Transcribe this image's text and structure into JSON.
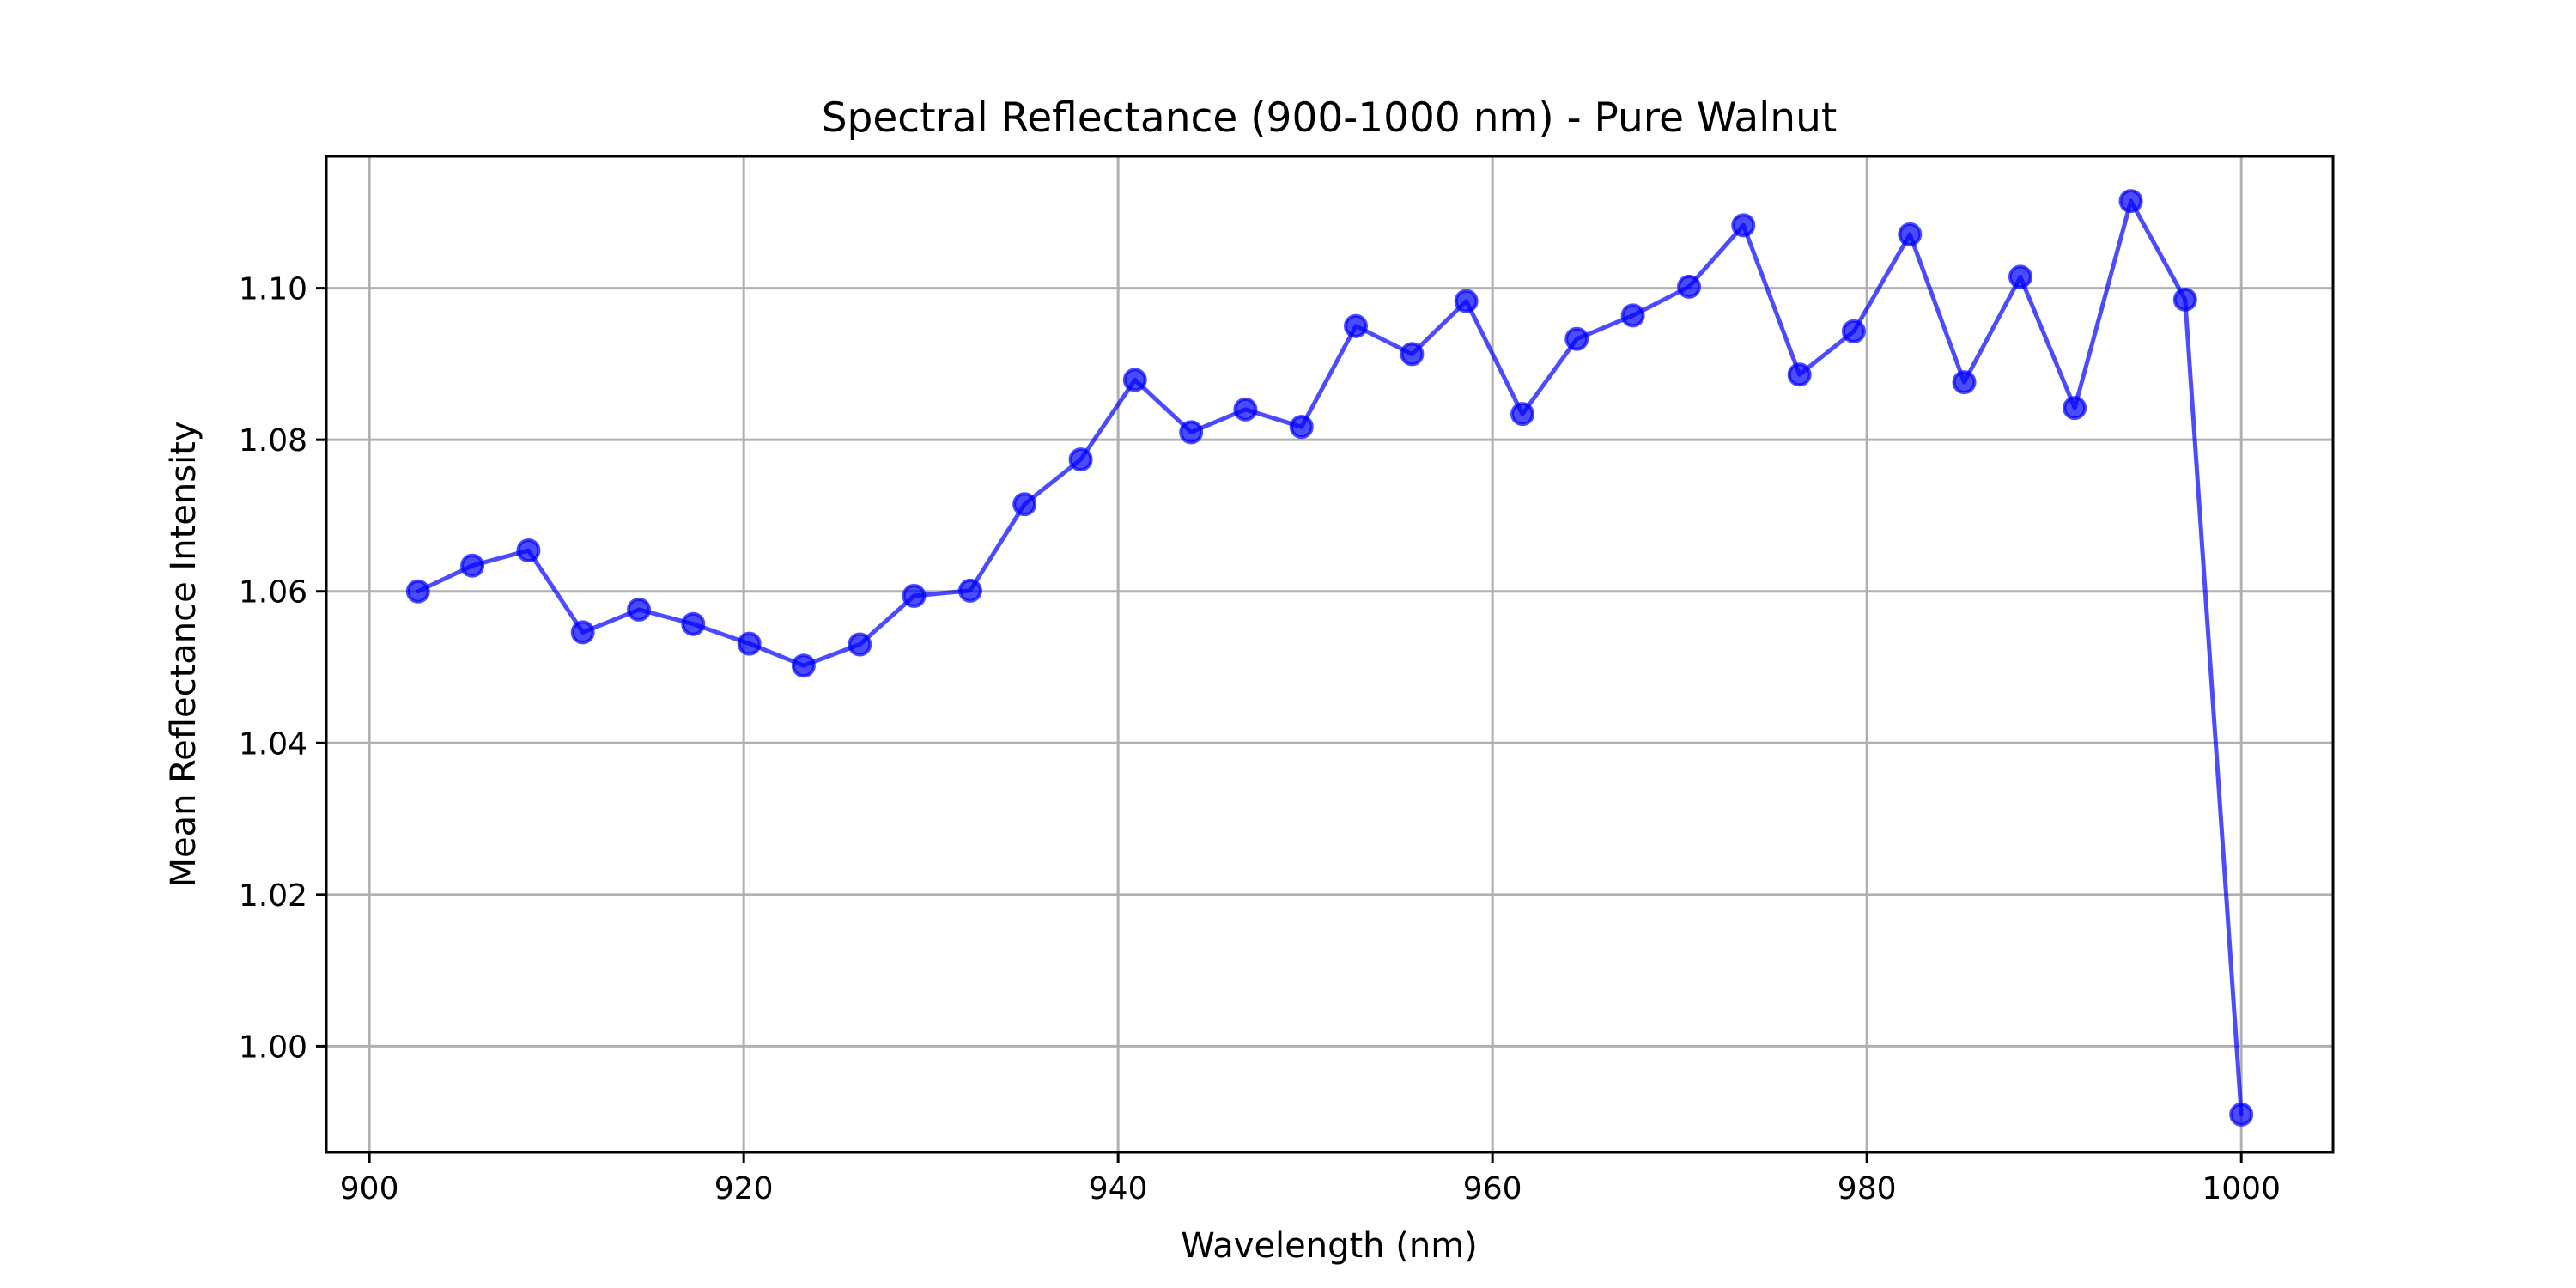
{
  "chart_data": {
    "type": "line",
    "title": "Spectral Reflectance (900-1000 nm) - Pure Walnut",
    "xlabel": "Wavelength (nm)",
    "ylabel": "Mean Reflectance Intensity",
    "xlim": [
      897.7,
      1004.9
    ],
    "ylim": [
      0.986,
      1.1174
    ],
    "xticks": [
      900,
      920,
      940,
      960,
      980,
      1000
    ],
    "xtick_labels": [
      "900",
      "920",
      "940",
      "960",
      "980",
      "1000"
    ],
    "yticks": [
      1.0,
      1.02,
      1.04,
      1.06,
      1.08,
      1.1
    ],
    "ytick_labels": [
      "1.00",
      "1.02",
      "1.04",
      "1.06",
      "1.08",
      "1.10"
    ],
    "grid": true,
    "legend": "none",
    "color": "#0000ff",
    "series": [
      {
        "marker": "circle",
        "x": [
          902.6,
          905.5,
          908.5,
          911.4,
          914.4,
          917.3,
          920.3,
          923.2,
          926.2,
          929.1,
          932.1,
          935.0,
          938.0,
          940.9,
          943.9,
          946.8,
          949.8,
          952.7,
          955.7,
          958.6,
          961.6,
          964.5,
          967.5,
          970.5,
          973.4,
          976.4,
          979.3,
          982.3,
          985.2,
          988.2,
          991.1,
          994.1,
          997.0,
          1000.0
        ],
        "y": [
          1.06,
          1.0634,
          1.0654,
          1.0546,
          1.0576,
          1.0557,
          1.0531,
          1.0502,
          1.053,
          1.0594,
          1.0601,
          1.0715,
          1.0774,
          1.0879,
          1.081,
          1.084,
          1.0817,
          1.095,
          1.0913,
          1.0983,
          1.0834,
          1.0933,
          1.0964,
          1.1002,
          1.1083,
          1.0886,
          1.0943,
          1.1071,
          1.0876,
          1.1015,
          1.0842,
          1.1115,
          1.0985,
          0.991
        ]
      }
    ]
  }
}
